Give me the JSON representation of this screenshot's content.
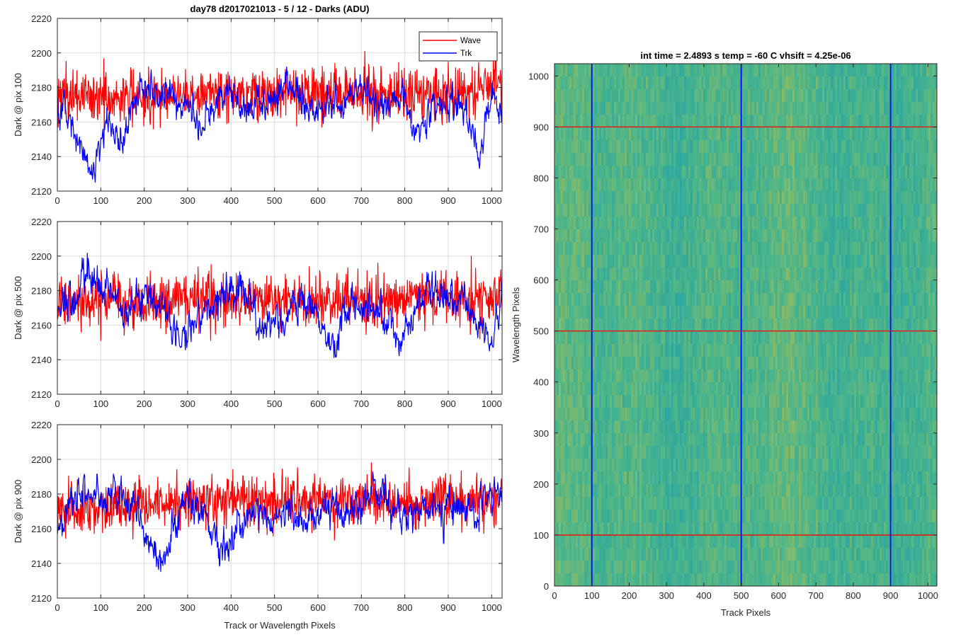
{
  "chart_data": [
    {
      "type": "line",
      "title": "day78 d2017021013 - 5 / 12 - Darks (ADU)",
      "xlabel": "",
      "ylabel": "Dark @ pix 100",
      "xlim": [
        0,
        1024
      ],
      "ylim": [
        2120,
        2220
      ],
      "xticks": [
        0,
        100,
        200,
        300,
        400,
        500,
        600,
        700,
        800,
        900,
        1000
      ],
      "yticks": [
        2120,
        2140,
        2160,
        2180,
        2200,
        2220
      ],
      "grid": true,
      "legend": "top-right",
      "series": [
        {
          "name": "Wave",
          "color": "#ff0000",
          "x": [
            0,
            50,
            100,
            150,
            200,
            250,
            300,
            350,
            400,
            450,
            500,
            550,
            600,
            650,
            700,
            750,
            800,
            850,
            900,
            950,
            1000,
            1024
          ],
          "y": [
            2176,
            2175,
            2174,
            2174,
            2175,
            2176,
            2176,
            2177,
            2177,
            2177,
            2176,
            2176,
            2177,
            2177,
            2177,
            2177,
            2176,
            2176,
            2177,
            2178,
            2182,
            2185
          ],
          "noise_sd": 10
        },
        {
          "name": "Trk",
          "color": "#0000ff",
          "x": [
            0,
            30,
            60,
            80,
            110,
            150,
            180,
            200,
            230,
            260,
            300,
            330,
            360,
            400,
            430,
            460,
            500,
            540,
            580,
            620,
            660,
            700,
            740,
            780,
            800,
            830,
            860,
            900,
            940,
            970,
            1000,
            1024
          ],
          "y": [
            2170,
            2160,
            2138,
            2132,
            2160,
            2150,
            2175,
            2178,
            2172,
            2180,
            2170,
            2155,
            2172,
            2180,
            2168,
            2170,
            2175,
            2182,
            2165,
            2170,
            2168,
            2180,
            2170,
            2168,
            2175,
            2150,
            2165,
            2175,
            2168,
            2140,
            2180,
            2165
          ],
          "noise_sd": 4
        }
      ]
    },
    {
      "type": "line",
      "title": "",
      "xlabel": "",
      "ylabel": "Dark @ pix 500",
      "xlim": [
        0,
        1024
      ],
      "ylim": [
        2120,
        2220
      ],
      "xticks": [
        0,
        100,
        200,
        300,
        400,
        500,
        600,
        700,
        800,
        900,
        1000
      ],
      "yticks": [
        2120,
        2140,
        2160,
        2180,
        2200,
        2220
      ],
      "grid": true,
      "series": [
        {
          "name": "Wave",
          "color": "#ff0000",
          "x": [
            0,
            100,
            200,
            300,
            400,
            500,
            600,
            700,
            800,
            900,
            1000,
            1024
          ],
          "y": [
            2172,
            2172,
            2173,
            2174,
            2176,
            2175,
            2174,
            2174,
            2175,
            2175,
            2176,
            2176
          ],
          "noise_sd": 10
        },
        {
          "name": "Trk",
          "color": "#0000ff",
          "x": [
            0,
            40,
            70,
            120,
            160,
            200,
            240,
            280,
            320,
            360,
            400,
            440,
            480,
            520,
            560,
            600,
            640,
            680,
            720,
            760,
            800,
            840,
            880,
            920,
            960,
            1000,
            1024
          ],
          "y": [
            2168,
            2175,
            2190,
            2180,
            2168,
            2175,
            2172,
            2150,
            2162,
            2170,
            2180,
            2175,
            2155,
            2165,
            2175,
            2162,
            2150,
            2175,
            2170,
            2160,
            2155,
            2175,
            2182,
            2175,
            2165,
            2148,
            2180
          ],
          "noise_sd": 4.5
        }
      ]
    },
    {
      "type": "line",
      "title": "",
      "xlabel": "Track or Wavelength Pixels",
      "ylabel": "Dark @ pix 900",
      "xlim": [
        0,
        1024
      ],
      "ylim": [
        2120,
        2220
      ],
      "xticks": [
        0,
        100,
        200,
        300,
        400,
        500,
        600,
        700,
        800,
        900,
        1000
      ],
      "yticks": [
        2120,
        2140,
        2160,
        2180,
        2200,
        2220
      ],
      "grid": true,
      "series": [
        {
          "name": "Wave",
          "color": "#ff0000",
          "x": [
            0,
            100,
            200,
            300,
            400,
            500,
            600,
            700,
            800,
            900,
            1000,
            1024
          ],
          "y": [
            2172,
            2171,
            2173,
            2176,
            2177,
            2176,
            2176,
            2176,
            2174,
            2175,
            2177,
            2178
          ],
          "noise_sd": 10
        },
        {
          "name": "Trk",
          "color": "#0000ff",
          "x": [
            0,
            20,
            60,
            100,
            140,
            180,
            210,
            240,
            270,
            300,
            340,
            380,
            420,
            460,
            500,
            540,
            580,
            620,
            660,
            700,
            730,
            760,
            800,
            840,
            880,
            920,
            960,
            1000,
            1024
          ],
          "y": [
            2158,
            2168,
            2185,
            2175,
            2180,
            2170,
            2150,
            2140,
            2165,
            2178,
            2165,
            2150,
            2160,
            2170,
            2165,
            2168,
            2165,
            2175,
            2170,
            2178,
            2185,
            2175,
            2170,
            2172,
            2168,
            2175,
            2170,
            2182,
            2178
          ],
          "noise_sd": 4.5
        }
      ]
    },
    {
      "type": "heatmap",
      "title": "int time = 2.4893 s    temp = -60 C    vhsift = 4.25e-06",
      "xlabel": "Track Pixels",
      "ylabel": "Wavelength Pixels",
      "xlim": [
        0,
        1024
      ],
      "ylim": [
        0,
        1024
      ],
      "xticks": [
        0,
        100,
        200,
        300,
        400,
        500,
        600,
        700,
        800,
        900,
        1000
      ],
      "yticks": [
        0,
        100,
        200,
        300,
        400,
        500,
        600,
        700,
        800,
        900,
        1000
      ],
      "colormap": "parula",
      "colors": {
        "low": "#1fa0a8",
        "mid": "#4cb58a",
        "high": "#a6bd55"
      },
      "vertical_markers": {
        "x": [
          100,
          500,
          900
        ],
        "color": "#0000ff"
      },
      "horizontal_markers": {
        "y": [
          100,
          500,
          900
        ],
        "color": "#ff0000"
      }
    }
  ]
}
